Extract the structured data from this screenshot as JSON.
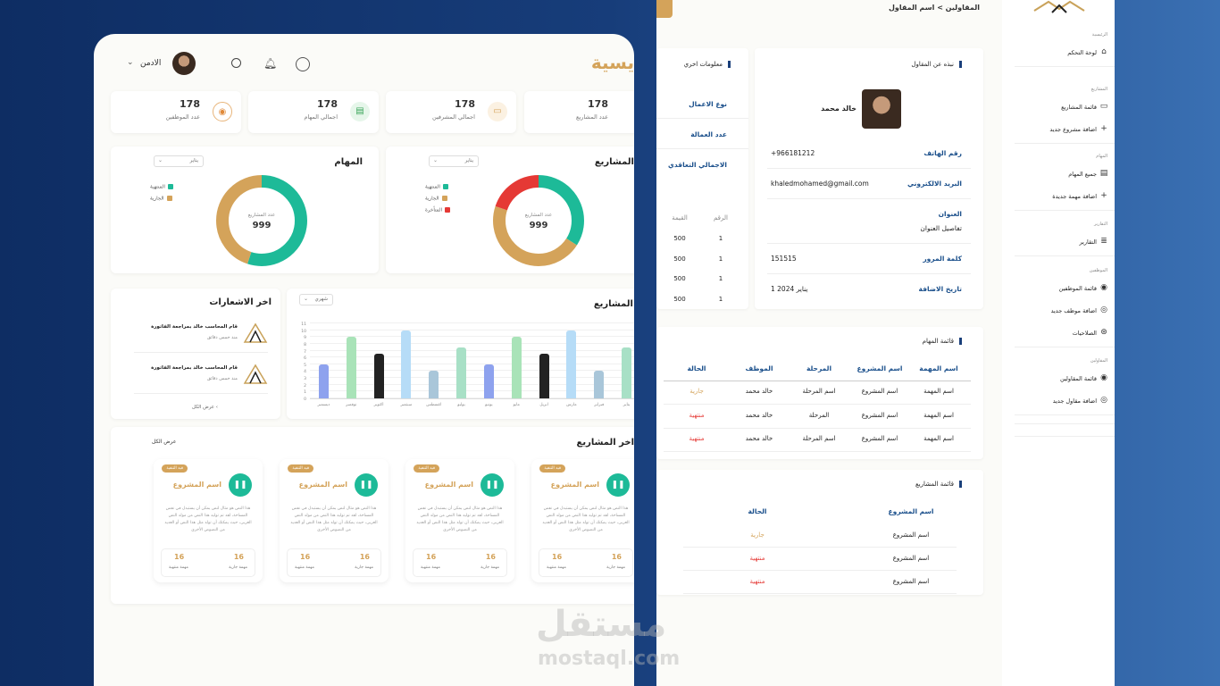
{
  "left": {
    "title": "يسية",
    "user": "الادمن",
    "stats": [
      {
        "value": "178",
        "label": "عدد المشاريع"
      },
      {
        "value": "178",
        "label": "اجمالي المشرفين"
      },
      {
        "value": "178",
        "label": "اجمالي المهام"
      },
      {
        "value": "178",
        "label": "عدد الموظفين"
      }
    ],
    "projects_chart": {
      "title": "المشاريع",
      "filter": "يناير",
      "center_label": "عدد المشاريع",
      "center_value": "999",
      "legend": [
        "المنتهية",
        "الجارية",
        "المتأخرة"
      ]
    },
    "tasks_chart": {
      "title": "المهام",
      "filter": "يناير",
      "center_label": "عدد المشاريع",
      "center_value": "999",
      "legend": [
        "المنتهية",
        "الجارية"
      ]
    },
    "notifications": {
      "title": "اخر الاشعارات",
      "items": [
        {
          "text": "قام المحاسب خالد بمراجعة الفاتورة",
          "time": "منذ خمس دقائق"
        },
        {
          "text": "قام المحاسب خالد بمراجعة الفاتورة",
          "time": "منذ خمس دقائق"
        }
      ],
      "view_all": "عرض الكل"
    },
    "bar_chart": {
      "title": "المشاريع",
      "filter": "شهري"
    },
    "latest_projects": {
      "title": "اخر المشاريع",
      "view_all": "عرض الكل",
      "cards": [
        {
          "badge": "قيد التنفيذ",
          "name": "اسم المشروع",
          "desc": "هذا النص هو مثال لنص يمكن أن يستبدل في نفس المساحة، لقد تم توليد هذا النص من مولد النص العربى، حيث يمكنك أن تولد مثل هذا النص أو العديد من النصوص الأخرى",
          "v1": "16",
          "l1": "مهمة جارية",
          "v2": "16",
          "l2": "مهمة منتهية"
        },
        {
          "badge": "قيد التنفيذ",
          "name": "اسم المشروع",
          "desc": "هذا النص هو مثال لنص يمكن أن يستبدل في نفس المساحة، لقد تم توليد هذا النص من مولد النص العربى، حيث يمكنك أن تولد مثل هذا النص أو العديد من النصوص الأخرى",
          "v1": "16",
          "l1": "مهمة جارية",
          "v2": "16",
          "l2": "مهمة منتهية"
        },
        {
          "badge": "قيد التنفيذ",
          "name": "اسم المشروع",
          "desc": "هذا النص هو مثال لنص يمكن أن يستبدل في نفس المساحة، لقد تم توليد هذا النص من مولد النص العربى، حيث يمكنك أن تولد مثل هذا النص أو العديد من النصوص الأخرى",
          "v1": "16",
          "l1": "مهمة جارية",
          "v2": "16",
          "l2": "مهمة منتهية"
        },
        {
          "badge": "قيد التنفيذ",
          "name": "اسم المشروع",
          "desc": "هذا النص هو مثال لنص يمكن أن يستبدل في نفس المساحة، لقد تم توليد هذا النص من مولد النص العربى، حيث يمكنك أن تولد مثل هذا النص أو العديد من النصوص الأخرى",
          "v1": "16",
          "l1": "مهمة جارية",
          "v2": "16",
          "l2": "مهمة منتهية"
        }
      ]
    }
  },
  "chart_data": [
    {
      "type": "pie",
      "title": "المشاريع",
      "categories": [
        "المنتهية",
        "الجارية",
        "المتأخرة"
      ],
      "values": [
        34,
        46,
        20
      ],
      "colors": [
        "#1dba98",
        "#d4a35a",
        "#e53935"
      ]
    },
    {
      "type": "pie",
      "title": "المهام",
      "categories": [
        "المنتهية",
        "الجارية"
      ],
      "values": [
        55,
        45
      ],
      "colors": [
        "#1dba98",
        "#d4a35a"
      ]
    },
    {
      "type": "bar",
      "title": "المشاريع",
      "categories": [
        "ديسمبر",
        "نوفمبر",
        "اكتوبر",
        "سبتمبر",
        "اغسطس",
        "يوليو",
        "يونيو",
        "مايو",
        "ابريل",
        "مارس",
        "فبراير",
        "يناير"
      ],
      "values": [
        5,
        9,
        6.5,
        10,
        4,
        7.5,
        5,
        9,
        6.5,
        10,
        4,
        7.5
      ],
      "colors": [
        "#8ea2ee",
        "#a9e3b8",
        "#222222",
        "#b6dcf7",
        "#a9c6d9",
        "#a8e0c6",
        "#8ea2ee",
        "#a9e3b8",
        "#222222",
        "#b6dcf7",
        "#a9c6d9",
        "#a8e0c6"
      ],
      "ylim": [
        0,
        11
      ],
      "yticks": [
        0,
        1,
        2,
        3,
        4,
        5,
        6,
        7,
        8,
        9,
        10,
        11
      ]
    }
  ],
  "mid": {
    "breadcrumb": "المقاولين > اسم المقاول",
    "contractor": {
      "section": "نبذه عن المقاول",
      "name": "خالد محمد",
      "fields": [
        {
          "label": "رقم الهاتف",
          "value": "+966181212"
        },
        {
          "label": "البريد الالكتروني",
          "value": "khaledmohamed@gmail.com"
        },
        {
          "label": "العنوان",
          "value": "تفاصيل العنوان"
        },
        {
          "label": "كلمة المرور",
          "value": "151515"
        },
        {
          "label": "تاريخ الاضافة",
          "value": "1 يناير 2024"
        }
      ]
    },
    "other": {
      "section": "معلومات اخري",
      "links": [
        "نوع الاعمال",
        "عدد العمالة",
        "الاجمالي التعاقدي"
      ],
      "headers": [
        "الرقم",
        "القيمة"
      ],
      "rows": [
        [
          "1",
          "500"
        ],
        [
          "1",
          "500"
        ],
        [
          "1",
          "500"
        ],
        [
          "1",
          "500"
        ]
      ]
    },
    "tasks": {
      "section": "قائمة المهام",
      "headers": [
        "اسم المهمة",
        "اسم المشروع",
        "المرحلة",
        "الموظف",
        "الحالة"
      ],
      "rows": [
        [
          "اسم المهمة",
          "اسم المشروع",
          "اسم المرحلة",
          "خالد محمد",
          "جارية"
        ],
        [
          "اسم المهمة",
          "اسم المشروع",
          "المرحلة",
          "خالد محمد",
          "منتهية"
        ],
        [
          "اسم المهمة",
          "اسم المشروع",
          "اسم المرحلة",
          "خالد محمد",
          "منتهية"
        ]
      ]
    },
    "projects": {
      "section": "قائمة المشاريع",
      "headers": [
        "اسم المشروع",
        "الحالة"
      ],
      "rows": [
        [
          "اسم المشروع",
          "جارية"
        ],
        [
          "اسم المشروع",
          "منتهية"
        ],
        [
          "اسم المشروع",
          "منتهية"
        ]
      ]
    }
  },
  "sidebar": {
    "groups": [
      {
        "title": "الرئيسية",
        "items": [
          {
            "label": "لوحة التحكم",
            "icon": "home-icon"
          }
        ]
      },
      {
        "title": "المشاريع",
        "items": [
          {
            "label": "قائمة المشاريع",
            "icon": "folder-icon"
          },
          {
            "label": "اضافة مشروع جديد",
            "icon": "plus-icon"
          }
        ]
      },
      {
        "title": "المهام",
        "items": [
          {
            "label": "جميع المهام",
            "icon": "file-icon"
          },
          {
            "label": "اضافة مهمة جديدة",
            "icon": "plus-icon"
          }
        ]
      },
      {
        "title": "التقارير",
        "items": [
          {
            "label": "التقارير",
            "icon": "report-icon"
          }
        ]
      },
      {
        "title": "الموظفين",
        "items": [
          {
            "label": "قائمة الموظفين",
            "icon": "user-icon"
          },
          {
            "label": "اضافة موظف جديد",
            "icon": "user-plus-icon"
          },
          {
            "label": "الصلاحيات",
            "icon": "user-gear-icon"
          }
        ]
      },
      {
        "title": "المقاولين",
        "items": [
          {
            "label": "قائمة المقاولين",
            "icon": "user-icon"
          },
          {
            "label": "اضافة مقاول جديد",
            "icon": "user-plus-icon"
          }
        ]
      }
    ]
  },
  "watermark": {
    "ar": "مستقل",
    "en": "mostaql.com"
  },
  "colors": {
    "accent": "#d4a35a",
    "green": "#1dba98",
    "red": "#e53935",
    "navy": "#1a4f8b"
  }
}
